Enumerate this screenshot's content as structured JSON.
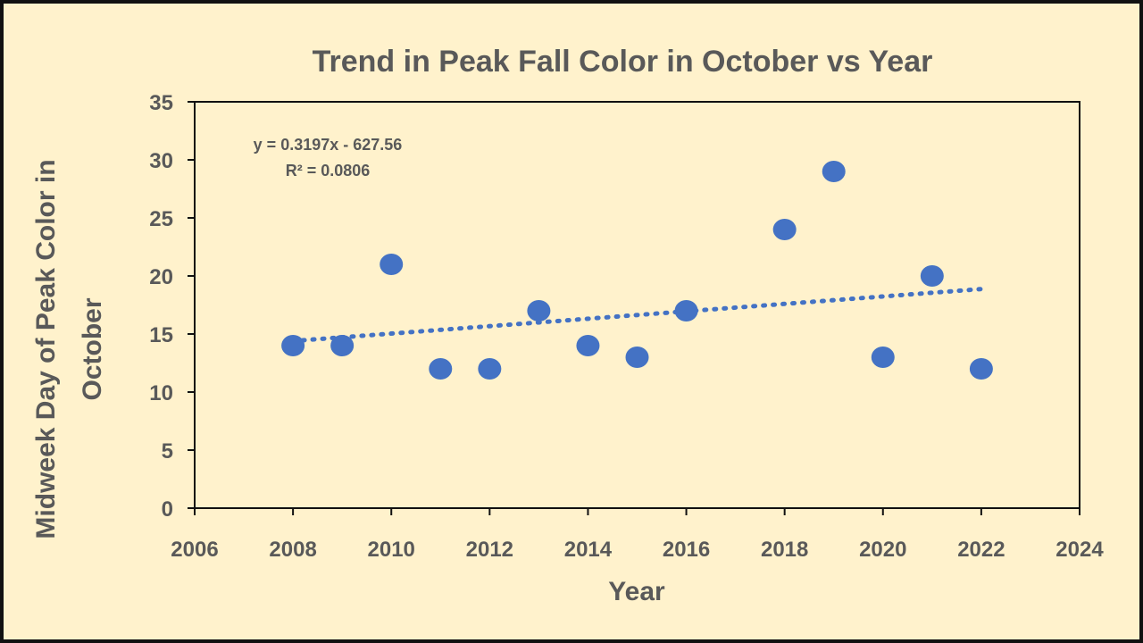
{
  "chart_data": {
    "type": "scatter",
    "title": "Trend in Peak Fall Color in October vs Year",
    "xlabel": "Year",
    "ylabel_lines": [
      "Midweek Day of Peak Color in",
      "October"
    ],
    "xlim": [
      2006,
      2024
    ],
    "ylim": [
      0,
      35
    ],
    "x_ticks": [
      2006,
      2008,
      2010,
      2012,
      2014,
      2016,
      2018,
      2020,
      2022,
      2024
    ],
    "y_ticks": [
      0,
      5,
      10,
      15,
      20,
      25,
      30,
      35
    ],
    "grid": false,
    "legend": "none",
    "marker_color": "#4472c4",
    "points": [
      {
        "x": 2008,
        "y": 14
      },
      {
        "x": 2009,
        "y": 14
      },
      {
        "x": 2010,
        "y": 21
      },
      {
        "x": 2011,
        "y": 12
      },
      {
        "x": 2012,
        "y": 12
      },
      {
        "x": 2013,
        "y": 17
      },
      {
        "x": 2014,
        "y": 14
      },
      {
        "x": 2015,
        "y": 13
      },
      {
        "x": 2016,
        "y": 17
      },
      {
        "x": 2018,
        "y": 24
      },
      {
        "x": 2019,
        "y": 29
      },
      {
        "x": 2020,
        "y": 13
      },
      {
        "x": 2021,
        "y": 20
      },
      {
        "x": 2022,
        "y": 12
      }
    ],
    "trendline": {
      "type": "linear",
      "slope": 0.3197,
      "intercept": -627.56,
      "x_range": [
        2008,
        2022
      ],
      "style": "dotted",
      "color": "#4472c4",
      "equation_label": "y = 0.3197x - 627.56",
      "r2_label": "R² = 0.0806"
    }
  }
}
